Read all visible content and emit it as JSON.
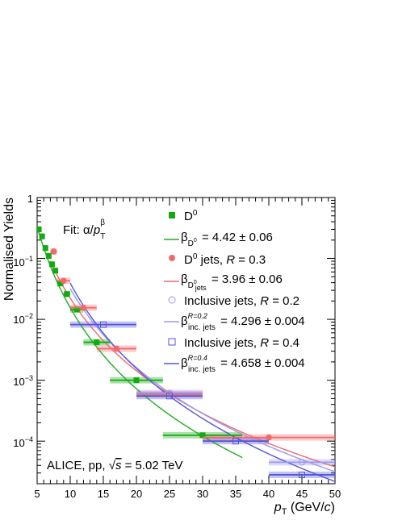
{
  "chart_data": {
    "type": "scatter",
    "title": "",
    "xlabel": "p_T (GeV/c)",
    "xlabel_parts": {
      "p": "p",
      "sub": "T",
      "rest": " (GeV/",
      "c": "c",
      "close": ")"
    },
    "ylabel": "Normalised Yields",
    "xlim": [
      5,
      50
    ],
    "ylim": [
      2e-05,
      1
    ],
    "yscale": "log",
    "x_ticks": [
      "5",
      "10",
      "15",
      "20",
      "25",
      "30",
      "35",
      "40",
      "45",
      "50"
    ],
    "y_ticks": [
      {
        "base": "1",
        "exp": ""
      },
      {
        "base": "10",
        "exp": "−1"
      },
      {
        "base": "10",
        "exp": "−2"
      },
      {
        "base": "10",
        "exp": "−3"
      },
      {
        "base": "10",
        "exp": "−4"
      }
    ],
    "fit_label": {
      "prefix": "Fit: α/",
      "p": "p",
      "sub": "T",
      "sup": "β"
    },
    "collision_label": {
      "prefix": "ALICE, pp, ",
      "sqrt": "√",
      "s": "s",
      "rest": " = 5.02 TeV"
    },
    "series": [
      {
        "name": "D⁰",
        "legend": {
          "label": "D",
          "sup": "0"
        },
        "color": "#11aa11",
        "marker": "square-filled",
        "points": [
          {
            "x": 5.25,
            "y": 0.3,
            "xerr": 0.25
          },
          {
            "x": 5.75,
            "y": 0.23,
            "xerr": 0.25
          },
          {
            "x": 6.25,
            "y": 0.148,
            "xerr": 0.25
          },
          {
            "x": 6.75,
            "y": 0.11,
            "xerr": 0.25
          },
          {
            "x": 7.25,
            "y": 0.08,
            "xerr": 0.25
          },
          {
            "x": 7.75,
            "y": 0.063,
            "xerr": 0.25
          },
          {
            "x": 8.5,
            "y": 0.039,
            "xerr": 0.5
          },
          {
            "x": 9.5,
            "y": 0.026,
            "xerr": 0.5
          },
          {
            "x": 11,
            "y": 0.0145,
            "xerr": 1
          },
          {
            "x": 14,
            "y": 0.0042,
            "xerr": 2
          },
          {
            "x": 20,
            "y": 0.001,
            "xerr": 4
          },
          {
            "x": 30,
            "y": 0.000125,
            "xerr": 6
          }
        ]
      },
      {
        "name": "D⁰ jets, R = 0.3",
        "legend": {
          "label": "D",
          "sup": "0",
          "rest": " jets, ",
          "italic": "R",
          "tail": " = 0.3"
        },
        "color": "#f06a6a",
        "marker": "circle-filled",
        "points": [
          {
            "x": 7.5,
            "y": 0.13,
            "xerr": 0.5
          },
          {
            "x": 9,
            "y": 0.043,
            "xerr": 1
          },
          {
            "x": 12,
            "y": 0.0155,
            "xerr": 2
          },
          {
            "x": 17,
            "y": 0.0033,
            "xerr": 3
          },
          {
            "x": 25,
            "y": 0.00059,
            "xerr": 5
          },
          {
            "x": 40,
            "y": 0.000115,
            "xerr": 10
          }
        ]
      },
      {
        "name": "Inclusive jets, R = 0.2",
        "legend": {
          "label": "Inclusive jets, ",
          "italic": "R",
          "tail": " = 0.2"
        },
        "color": "#9999ee",
        "marker": "circle-open",
        "points": [
          {
            "x": 25,
            "y": 0.00062,
            "xerr": 5
          },
          {
            "x": 45,
            "y": 4.5e-05,
            "xerr": 5
          }
        ]
      },
      {
        "name": "Inclusive jets, R = 0.4",
        "legend": {
          "label": "Inclusive jets, ",
          "italic": "R",
          "tail": " = 0.4"
        },
        "color": "#5555dd",
        "marker": "square-open",
        "points": [
          {
            "x": 15,
            "y": 0.0082,
            "xerr": 5
          },
          {
            "x": 25,
            "y": 0.00055,
            "xerr": 5
          },
          {
            "x": 35,
            "y": 0.0001,
            "xerr": 5
          },
          {
            "x": 45,
            "y": 2.8e-05,
            "xerr": 5
          }
        ]
      }
    ],
    "fits": [
      {
        "legend": {
          "beta": "β",
          "sub": "D",
          "subsup": "0",
          "subrest": "",
          "sup": "",
          "value": " = 4.42 ± 0.06"
        },
        "beta": 4.42,
        "color": "#22aa22",
        "x_range": [
          5,
          36
        ],
        "anchor": {
          "x": 10,
          "y": 0.0155
        }
      },
      {
        "legend": {
          "beta": "β",
          "sub": "D",
          "subsup": "0",
          "subrest": "jets",
          "sup": "",
          "value": " = 3.96 ± 0.06"
        },
        "beta": 3.96,
        "color": "#f06a6a",
        "x_range": [
          7,
          50
        ],
        "anchor": {
          "x": 25,
          "y": 0.00059
        }
      },
      {
        "legend": {
          "beta": "β",
          "sub": "inc. jets",
          "subsup": "",
          "subrest": "",
          "sup": "R=0.2",
          "value": " = 4.296 ± 0.004"
        },
        "beta": 4.296,
        "color": "#9999ee",
        "x_range": [
          10,
          50
        ],
        "anchor": {
          "x": 25,
          "y": 0.00062
        }
      },
      {
        "legend": {
          "beta": "β",
          "sub": "inc. jets",
          "subsup": "",
          "subrest": "",
          "sup": "R=0.4",
          "value": " = 4.658 ± 0.004"
        },
        "beta": 4.658,
        "color": "#5555dd",
        "x_range": [
          10,
          50
        ],
        "anchor": {
          "x": 25,
          "y": 0.00055
        }
      }
    ],
    "legend_position": "top-right",
    "grid": false
  }
}
